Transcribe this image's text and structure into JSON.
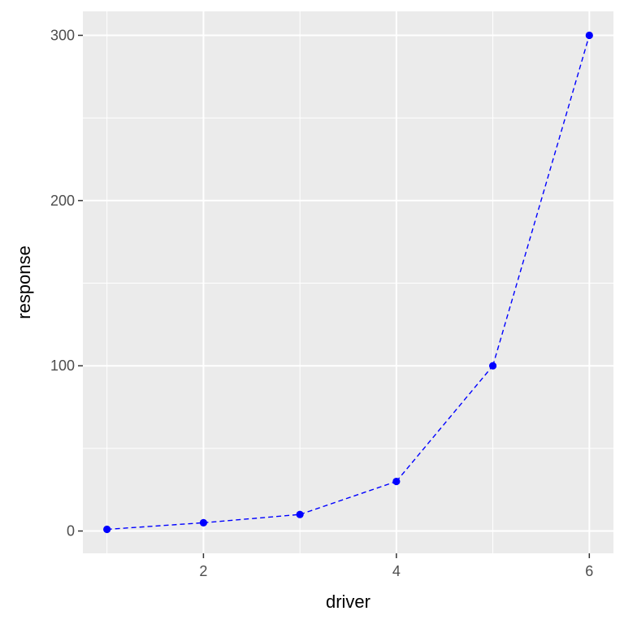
{
  "chart_data": {
    "type": "line",
    "title": "",
    "xlabel": "driver",
    "ylabel": "response",
    "x": [
      1,
      2,
      3,
      4,
      5,
      6
    ],
    "series": [
      {
        "values": [
          1,
          5,
          10,
          30,
          100,
          300
        ]
      }
    ],
    "xlim": [
      0.75,
      6.25
    ],
    "ylim": [
      -13.5,
      314.5
    ],
    "x_ticks": [
      2,
      4,
      6
    ],
    "y_ticks": [
      0,
      100,
      200,
      300
    ],
    "x_minor_ticks": [
      1,
      3,
      5
    ],
    "y_minor_ticks": [
      50,
      150,
      250
    ],
    "x_tick_labels": [
      "2",
      "4",
      "6"
    ],
    "y_tick_labels": [
      "0",
      "100",
      "200",
      "300"
    ],
    "grid": true,
    "legend": "none",
    "line_style": "dashed",
    "marker": "point",
    "colors": {
      "series": "#0000ff",
      "panel_background": "#ebebeb",
      "grid": "#ffffff",
      "tick_text": "#4d4d4d",
      "axis_title_text": "#000000"
    }
  }
}
